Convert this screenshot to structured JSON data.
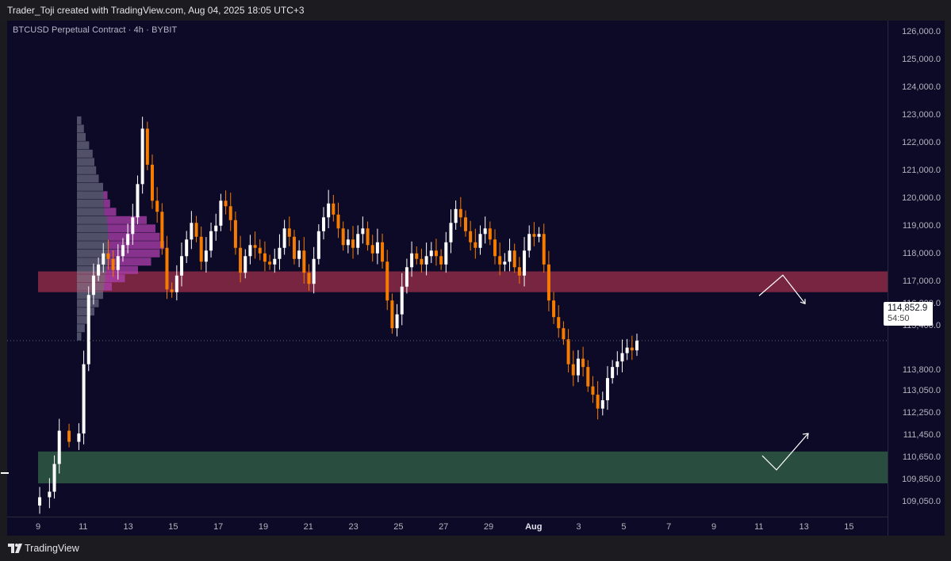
{
  "header": {
    "attribution": "Trader_Toji created with TradingView.com, Aug 04, 2025 18:05 UTC+3"
  },
  "chart_title": "BTCUSD Perpetual Contract · 4h · BYBIT",
  "footer": {
    "brand": "TradingView"
  },
  "colors": {
    "background": "#0d0a27",
    "up_candle": "#ffffff",
    "down_candle": "#f57c00",
    "resistance_zone": "#8b2a46",
    "support_zone": "#2f5a45",
    "volume_profile_up": "#8a8aa0",
    "volume_profile_down": "#b040b0"
  },
  "chart_data": {
    "type": "candlestick",
    "symbol": "BTCUSD Perpetual Contract",
    "timeframe": "4h",
    "exchange": "BYBIT",
    "y_axis": {
      "ylim": [
        108500,
        126400
      ],
      "tick_labels": [
        "126,000.0",
        "125,000.0",
        "124,000.0",
        "123,000.0",
        "122,000.0",
        "121,000.0",
        "120,000.0",
        "119,000.0",
        "118,000.0",
        "117,000.0",
        "116,200.0",
        "115,400.0",
        "113,800.0",
        "113,050.0",
        "112,250.0",
        "111,450.0",
        "110,650.0",
        "109,850.0",
        "109,050.0"
      ],
      "tick_values": [
        126000,
        125000,
        124000,
        123000,
        122000,
        121000,
        120000,
        119000,
        118000,
        117000,
        116200,
        115400,
        113800,
        113050,
        112250,
        111450,
        110650,
        109850,
        109050
      ]
    },
    "x_axis": {
      "tick_labels": [
        "9",
        "11",
        "13",
        "15",
        "17",
        "19",
        "21",
        "23",
        "25",
        "27",
        "29",
        "Aug",
        "3",
        "5",
        "7",
        "9",
        "11",
        "13",
        "15"
      ],
      "bold_ticks": [
        "Aug"
      ]
    },
    "last_price": {
      "value": "114,852.9",
      "countdown": "54:50",
      "numeric": 114852.9
    },
    "zones": [
      {
        "name": "resistance",
        "from": 116600,
        "to": 117350
      },
      {
        "name": "support",
        "from": 109700,
        "to": 110850
      }
    ],
    "projection_arrows": [
      {
        "zone": "resistance",
        "direction": "up-then-down"
      },
      {
        "zone": "support",
        "direction": "down-then-up"
      }
    ],
    "price_path": [
      [
        0,
        108900
      ],
      [
        6,
        109200
      ],
      [
        8,
        109400
      ],
      [
        9,
        110400
      ],
      [
        10,
        111600
      ],
      [
        12,
        111200
      ],
      [
        14,
        111500
      ],
      [
        15,
        114000
      ],
      [
        16,
        116500
      ],
      [
        17,
        117200
      ],
      [
        18,
        117600
      ],
      [
        19,
        118000
      ],
      [
        20,
        117800
      ],
      [
        21,
        117400
      ],
      [
        22,
        117900
      ],
      [
        23,
        118300
      ],
      [
        24,
        118700
      ],
      [
        25,
        119300
      ],
      [
        26,
        120500
      ],
      [
        27,
        122500
      ],
      [
        28,
        121200
      ],
      [
        29,
        119900
      ],
      [
        30,
        119500
      ],
      [
        31,
        118200
      ],
      [
        32,
        116700
      ],
      [
        33,
        116600
      ],
      [
        34,
        117200
      ],
      [
        35,
        117900
      ],
      [
        36,
        118500
      ],
      [
        37,
        119100
      ],
      [
        38,
        118600
      ],
      [
        39,
        117700
      ],
      [
        40,
        118100
      ],
      [
        41,
        118800
      ],
      [
        42,
        119000
      ],
      [
        43,
        119900
      ],
      [
        44,
        119700
      ],
      [
        45,
        119200
      ],
      [
        46,
        118200
      ],
      [
        47,
        117300
      ],
      [
        48,
        117900
      ],
      [
        49,
        118300
      ],
      [
        50,
        118200
      ],
      [
        51,
        118000
      ],
      [
        52,
        117700
      ],
      [
        53,
        117600
      ],
      [
        54,
        117800
      ],
      [
        55,
        118200
      ],
      [
        56,
        118900
      ],
      [
        57,
        118600
      ],
      [
        58,
        117800
      ],
      [
        59,
        118100
      ],
      [
        60,
        117300
      ],
      [
        61,
        116900
      ],
      [
        62,
        117800
      ],
      [
        63,
        118800
      ],
      [
        64,
        119300
      ],
      [
        65,
        119800
      ],
      [
        66,
        119400
      ],
      [
        67,
        118900
      ],
      [
        68,
        118300
      ],
      [
        69,
        118500
      ],
      [
        70,
        118200
      ],
      [
        71,
        118700
      ],
      [
        72,
        118900
      ],
      [
        73,
        118300
      ],
      [
        74,
        118000
      ],
      [
        75,
        118400
      ],
      [
        76,
        117700
      ],
      [
        77,
        116300
      ],
      [
        78,
        115300
      ],
      [
        79,
        115800
      ],
      [
        80,
        116800
      ],
      [
        81,
        117500
      ],
      [
        82,
        118000
      ],
      [
        83,
        117800
      ],
      [
        84,
        117600
      ],
      [
        85,
        117900
      ],
      [
        86,
        118100
      ],
      [
        87,
        117900
      ],
      [
        88,
        117600
      ],
      [
        89,
        118400
      ],
      [
        90,
        119100
      ],
      [
        91,
        119600
      ],
      [
        92,
        119300
      ],
      [
        93,
        118800
      ],
      [
        94,
        118400
      ],
      [
        95,
        118200
      ],
      [
        96,
        118700
      ],
      [
        97,
        118900
      ],
      [
        98,
        118500
      ],
      [
        99,
        117900
      ],
      [
        100,
        117600
      ],
      [
        101,
        117700
      ],
      [
        102,
        118100
      ],
      [
        103,
        117500
      ],
      [
        104,
        117200
      ],
      [
        105,
        118100
      ],
      [
        106,
        118700
      ],
      [
        107,
        118600
      ],
      [
        108,
        118700
      ],
      [
        109,
        117600
      ],
      [
        110,
        116300
      ],
      [
        111,
        115700
      ],
      [
        112,
        115300
      ],
      [
        113,
        114900
      ],
      [
        114,
        114000
      ],
      [
        115,
        113600
      ],
      [
        116,
        114200
      ],
      [
        117,
        113900
      ],
      [
        118,
        113200
      ],
      [
        119,
        112900
      ],
      [
        120,
        112400
      ],
      [
        121,
        112700
      ],
      [
        122,
        113500
      ],
      [
        123,
        113900
      ],
      [
        124,
        114100
      ],
      [
        125,
        114400
      ],
      [
        126,
        114600
      ],
      [
        127,
        114500
      ],
      [
        128,
        114852.9
      ]
    ],
    "volume_profile": [
      [
        122800,
        0.05
      ],
      [
        122500,
        0.08
      ],
      [
        122200,
        0.1
      ],
      [
        121900,
        0.14
      ],
      [
        121600,
        0.18
      ],
      [
        121300,
        0.2
      ],
      [
        121000,
        0.22
      ],
      [
        120700,
        0.25
      ],
      [
        120400,
        0.3
      ],
      [
        120100,
        0.35
      ],
      [
        119800,
        0.38
      ],
      [
        119500,
        0.45
      ],
      [
        119200,
        0.8
      ],
      [
        118900,
        0.9
      ],
      [
        118600,
        0.95
      ],
      [
        118300,
        1.0
      ],
      [
        118000,
        0.95
      ],
      [
        117700,
        0.85
      ],
      [
        117400,
        0.7
      ],
      [
        117100,
        0.55
      ],
      [
        116800,
        0.4
      ],
      [
        116500,
        0.3
      ],
      [
        116200,
        0.25
      ],
      [
        115900,
        0.2
      ],
      [
        115600,
        0.14
      ],
      [
        115300,
        0.09
      ],
      [
        115000,
        0.05
      ]
    ]
  }
}
